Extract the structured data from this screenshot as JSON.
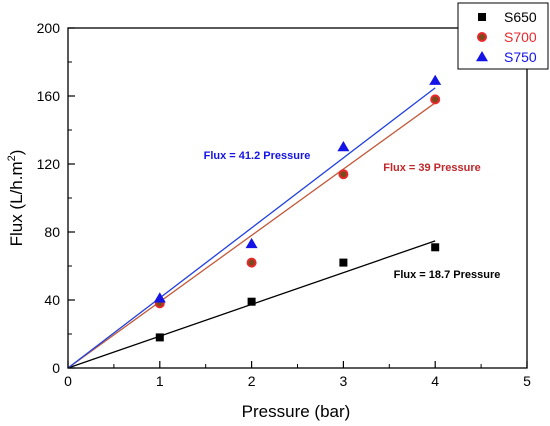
{
  "chart_data": {
    "type": "scatter",
    "xlabel": "Pressure (bar)",
    "ylabel_main": "Flux (L/h.m",
    "ylabel_sup": "2",
    "ylabel_close": ")",
    "xlim": [
      0,
      5
    ],
    "ylim": [
      0,
      200
    ],
    "xticks": [
      0,
      1,
      2,
      3,
      4,
      5
    ],
    "yticks": [
      0,
      40,
      80,
      120,
      160,
      200
    ],
    "xtick_labels": [
      "0",
      "1",
      "2",
      "3",
      "4",
      "5"
    ],
    "ytick_labels": [
      "0",
      "40",
      "80",
      "120",
      "160",
      "200"
    ],
    "grid": false,
    "legend_placement": "top-right",
    "series": [
      {
        "name": "S650",
        "marker": "square",
        "color": "#000000",
        "x": [
          1,
          2,
          3,
          4
        ],
        "y": [
          18,
          39,
          62,
          71
        ],
        "fit": {
          "slope": 18.7,
          "label": "Flux = 18.7 Pressure",
          "label_color": "#000000",
          "line_color": "#000000"
        }
      },
      {
        "name": "S700",
        "marker": "circle",
        "color": "#e8292c",
        "inner_color": "#7a4a1c",
        "x": [
          1,
          2,
          3,
          4
        ],
        "y": [
          38,
          62,
          114,
          158
        ],
        "fit": {
          "slope": 39,
          "label": "Flux = 39 Pressure",
          "label_color": "#c0282b",
          "line_color": "#c25a3a"
        }
      },
      {
        "name": "S750",
        "marker": "triangle",
        "color": "#1414e6",
        "x": [
          1,
          2,
          3,
          4
        ],
        "y": [
          41,
          73,
          130,
          169
        ],
        "fit": {
          "slope": 41.2,
          "label": "Flux = 41.2 Pressure",
          "label_color": "#1414e6",
          "line_color": "#1f3fe0"
        }
      }
    ]
  }
}
